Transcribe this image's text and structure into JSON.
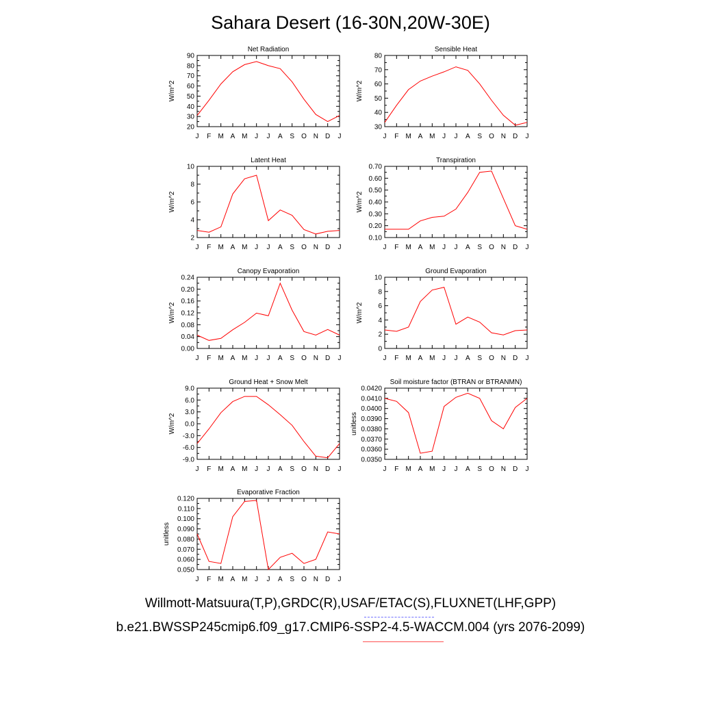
{
  "title": "Sahara Desert (16-30N,20W-30E)",
  "legend": {
    "obs_label": "Willmott-Matsuura(T,P),GRDC(R),USAF/ETAC(S),FLUXNET(LHF,GPP)",
    "model_label": "b.e21.BWSSP245cmip6.f09_g17.CMIP6-SSP2-4.5-WACCM.004 (yrs 2076-2099)",
    "obs_color": "#7070ff",
    "model_color": "#ff3030"
  },
  "chart_data": [
    {
      "type": "line",
      "title": "Net Radiation",
      "ylabel": "W/m^2",
      "ylim": [
        20,
        90
      ],
      "yticks": [
        "20",
        "30",
        "40",
        "50",
        "60",
        "70",
        "80",
        "90"
      ],
      "categories": [
        "J",
        "F",
        "M",
        "A",
        "M",
        "J",
        "J",
        "A",
        "S",
        "O",
        "N",
        "D",
        "J"
      ],
      "series": [
        {
          "color": "#ff0000",
          "values": [
            31,
            46,
            62,
            74,
            81,
            84,
            80,
            77,
            64,
            47,
            32,
            25,
            31
          ]
        }
      ]
    },
    {
      "type": "line",
      "title": "Sensible Heat",
      "ylabel": "W/m^2",
      "ylim": [
        30,
        80
      ],
      "yticks": [
        "30",
        "40",
        "50",
        "60",
        "70",
        "80"
      ],
      "categories": [
        "J",
        "F",
        "M",
        "A",
        "M",
        "J",
        "J",
        "A",
        "S",
        "O",
        "N",
        "D",
        "J"
      ],
      "series": [
        {
          "color": "#ff0000",
          "values": [
            33,
            45,
            56,
            62,
            65.5,
            68.5,
            72,
            69.5,
            60,
            48.5,
            38,
            31,
            33
          ]
        }
      ]
    },
    {
      "type": "line",
      "title": "Latent Heat",
      "ylabel": "W/m^2",
      "ylim": [
        2,
        10
      ],
      "yticks": [
        "2",
        "4",
        "6",
        "8",
        "10"
      ],
      "categories": [
        "J",
        "F",
        "M",
        "A",
        "M",
        "J",
        "J",
        "A",
        "S",
        "O",
        "N",
        "D",
        "J"
      ],
      "series": [
        {
          "color": "#ff0000",
          "values": [
            2.8,
            2.6,
            3.2,
            6.9,
            8.6,
            9.0,
            3.9,
            5.1,
            4.5,
            2.9,
            2.4,
            2.7,
            2.8
          ]
        }
      ]
    },
    {
      "type": "line",
      "title": "Transpiration",
      "ylabel": "W/m^2",
      "ylim": [
        0.1,
        0.7
      ],
      "yticks": [
        "0.10",
        "0.20",
        "0.30",
        "0.40",
        "0.50",
        "0.60",
        "0.70"
      ],
      "categories": [
        "J",
        "F",
        "M",
        "A",
        "M",
        "J",
        "J",
        "A",
        "S",
        "O",
        "N",
        "D",
        "J"
      ],
      "series": [
        {
          "color": "#ff0000",
          "values": [
            0.17,
            0.17,
            0.17,
            0.24,
            0.27,
            0.28,
            0.34,
            0.48,
            0.65,
            0.66,
            0.43,
            0.2,
            0.17
          ]
        }
      ]
    },
    {
      "type": "line",
      "title": "Canopy Evaporation",
      "ylabel": "W/m^2",
      "ylim": [
        0,
        0.24
      ],
      "yticks": [
        "0.00",
        "0.04",
        "0.08",
        "0.12",
        "0.16",
        "0.20",
        "0.24"
      ],
      "categories": [
        "J",
        "F",
        "M",
        "A",
        "M",
        "J",
        "J",
        "A",
        "S",
        "O",
        "N",
        "D",
        "J"
      ],
      "series": [
        {
          "color": "#ff0000",
          "values": [
            0.045,
            0.027,
            0.034,
            0.063,
            0.088,
            0.119,
            0.11,
            0.22,
            0.129,
            0.057,
            0.045,
            0.064,
            0.045
          ]
        }
      ]
    },
    {
      "type": "line",
      "title": "Ground Evaporation",
      "ylabel": "W/m^2",
      "ylim": [
        0,
        10
      ],
      "yticks": [
        "0",
        "2",
        "4",
        "6",
        "8",
        "10"
      ],
      "categories": [
        "J",
        "F",
        "M",
        "A",
        "M",
        "J",
        "J",
        "A",
        "S",
        "O",
        "N",
        "D",
        "J"
      ],
      "series": [
        {
          "color": "#ff0000",
          "values": [
            2.6,
            2.4,
            3.0,
            6.6,
            8.2,
            8.6,
            3.4,
            4.4,
            3.7,
            2.2,
            1.9,
            2.5,
            2.6
          ]
        }
      ]
    },
    {
      "type": "line",
      "title": "Ground Heat + Snow Melt",
      "ylabel": "W/m^2",
      "ylim": [
        -9,
        9
      ],
      "yticks": [
        "-9.0",
        "-6.0",
        "-3.0",
        "0.0",
        "3.0",
        "6.0",
        "9.0"
      ],
      "categories": [
        "J",
        "F",
        "M",
        "A",
        "M",
        "J",
        "J",
        "A",
        "S",
        "O",
        "N",
        "D",
        "J"
      ],
      "series": [
        {
          "color": "#ff0000",
          "values": [
            -5.0,
            -1.3,
            2.8,
            5.6,
            6.9,
            6.9,
            4.8,
            2.3,
            -0.4,
            -4.5,
            -8.2,
            -8.6,
            -5.0
          ]
        }
      ]
    },
    {
      "type": "line",
      "title": "Soil moisture factor (BTRAN or BTRANMN)",
      "ylabel": "unitless",
      "ylim": [
        0.035,
        0.042
      ],
      "yticks": [
        "0.0350",
        "0.0360",
        "0.0370",
        "0.0380",
        "0.0390",
        "0.0400",
        "0.0410",
        "0.0420"
      ],
      "categories": [
        "J",
        "F",
        "M",
        "A",
        "M",
        "J",
        "J",
        "A",
        "S",
        "O",
        "N",
        "D",
        "J"
      ],
      "series": [
        {
          "color": "#ff0000",
          "values": [
            0.041,
            0.0407,
            0.0396,
            0.0356,
            0.0358,
            0.0402,
            0.0411,
            0.0415,
            0.041,
            0.0388,
            0.038,
            0.0401,
            0.041
          ]
        }
      ]
    },
    {
      "type": "line",
      "title": "Evaporative Fraction",
      "ylabel": "unitless",
      "ylim": [
        0.05,
        0.12
      ],
      "yticks": [
        "0.050",
        "0.060",
        "0.070",
        "0.080",
        "0.090",
        "0.100",
        "0.110",
        "0.120"
      ],
      "categories": [
        "J",
        "F",
        "M",
        "A",
        "M",
        "J",
        "J",
        "A",
        "S",
        "O",
        "N",
        "D",
        "J"
      ],
      "series": [
        {
          "color": "#ff0000",
          "values": [
            0.085,
            0.058,
            0.056,
            0.102,
            0.117,
            0.118,
            0.05,
            0.062,
            0.066,
            0.056,
            0.06,
            0.087,
            0.085
          ]
        }
      ]
    }
  ]
}
